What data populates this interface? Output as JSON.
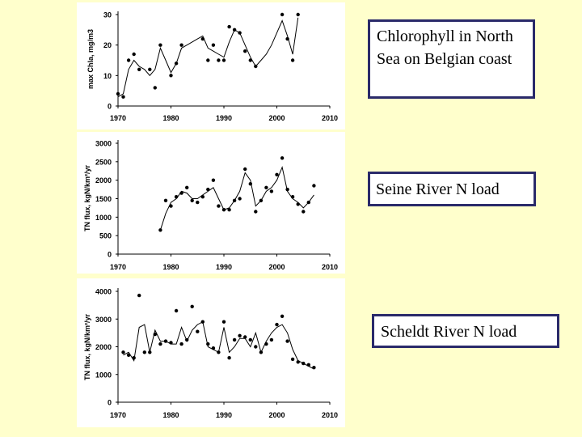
{
  "labels": {
    "chlorophyll": "Chlorophyll in North Sea on Belgian coast",
    "seine": "Seine River N load",
    "scheldt": "Scheldt River N load"
  },
  "chart_data": [
    {
      "type": "scatter",
      "title": "",
      "ylabel": "max Chla, mg/m3",
      "xlim": [
        1970,
        2010
      ],
      "ylim": [
        0,
        30
      ],
      "xticks": [
        "1970",
        "1980",
        "1990",
        "2000",
        "2010"
      ],
      "yticks": [
        "0",
        "10",
        "20",
        "30"
      ],
      "series": [
        {
          "x": [
            1970,
            1971,
            1972,
            1973,
            1974,
            1975,
            1976,
            1977,
            1978,
            1979,
            1980,
            1981,
            1982,
            1983,
            1984,
            1985,
            1986,
            1987,
            1988,
            1989,
            1990,
            1991,
            1992,
            1993,
            1994,
            1995,
            1996,
            1997,
            1998,
            1999,
            2000,
            2001,
            2002,
            2003,
            2004,
            2005,
            2006,
            2007
          ],
          "y": [
            4,
            3,
            15,
            17,
            12,
            null,
            12,
            6,
            20,
            null,
            10,
            14,
            20,
            null,
            null,
            null,
            22,
            15,
            20,
            15,
            15,
            26,
            25,
            24,
            18,
            15,
            13,
            null,
            null,
            null,
            null,
            30,
            22,
            15,
            30,
            null,
            null,
            null
          ]
        }
      ],
      "line": {
        "x": [
          1970,
          1971,
          1972,
          1973,
          1974,
          1975,
          1976,
          1977,
          1978,
          1979,
          1980,
          1981,
          1982,
          1983,
          1984,
          1985,
          1986,
          1987,
          1988,
          1989,
          1990,
          1991,
          1992,
          1993,
          1994,
          1995,
          1996,
          1997,
          1998,
          1999,
          2000,
          2001,
          2002,
          2003,
          2004
        ],
        "y": [
          3,
          4,
          12,
          15,
          13,
          12,
          10,
          12,
          19,
          15,
          11,
          14,
          19,
          20,
          21,
          22,
          23,
          19,
          18,
          17,
          16,
          21,
          25,
          24,
          20,
          16,
          13,
          15,
          17,
          20,
          24,
          28,
          23,
          17,
          29
        ]
      }
    },
    {
      "type": "scatter",
      "title": "",
      "ylabel": "TN flux, kgN/km²/yr",
      "xlim": [
        1970,
        2010
      ],
      "ylim": [
        0,
        3000
      ],
      "xticks": [
        "1970",
        "1980",
        "1990",
        "2000",
        "2010"
      ],
      "yticks": [
        "0",
        "500",
        "1000",
        "1500",
        "2000",
        "2500",
        "3000"
      ],
      "series": [
        {
          "x": [
            1978,
            1979,
            1980,
            1981,
            1982,
            1983,
            1984,
            1985,
            1986,
            1987,
            1988,
            1989,
            1990,
            1991,
            1992,
            1993,
            1994,
            1995,
            1996,
            1997,
            1998,
            1999,
            2000,
            2001,
            2002,
            2003,
            2004,
            2005,
            2006,
            2007,
            2008
          ],
          "y": [
            650,
            1450,
            1300,
            1550,
            1650,
            1800,
            1450,
            1400,
            1550,
            1750,
            2000,
            1300,
            1200,
            1200,
            1450,
            1500,
            2300,
            1900,
            1150,
            1450,
            1800,
            1700,
            2150,
            2600,
            1750,
            1550,
            1350,
            1150,
            1400,
            1850,
            null
          ]
        }
      ],
      "line": {
        "x": [
          1978,
          1979,
          1980,
          1981,
          1982,
          1983,
          1984,
          1985,
          1986,
          1987,
          1988,
          1989,
          1990,
          1991,
          1992,
          1993,
          1994,
          1995,
          1996,
          1997,
          1998,
          1999,
          2000,
          2001,
          2002,
          2003,
          2004,
          2005,
          2006,
          2007
        ],
        "y": [
          650,
          1100,
          1400,
          1500,
          1700,
          1650,
          1500,
          1500,
          1600,
          1700,
          1800,
          1500,
          1200,
          1250,
          1450,
          1700,
          2200,
          2000,
          1300,
          1450,
          1700,
          1800,
          2000,
          2350,
          1700,
          1500,
          1400,
          1250,
          1400,
          1600
        ]
      }
    },
    {
      "type": "scatter",
      "title": "",
      "ylabel": "TN flux, kgN/km²/yr",
      "xlim": [
        1970,
        2010
      ],
      "ylim": [
        0,
        4000
      ],
      "xticks": [
        "1970",
        "1980",
        "1990",
        "2000",
        "2010"
      ],
      "yticks": [
        "0",
        "1000",
        "2000",
        "3000",
        "4000"
      ],
      "series": [
        {
          "x": [
            1971,
            1972,
            1973,
            1974,
            1975,
            1976,
            1977,
            1978,
            1979,
            1980,
            1981,
            1982,
            1983,
            1984,
            1985,
            1986,
            1987,
            1988,
            1989,
            1990,
            1991,
            1992,
            1993,
            1994,
            1995,
            1996,
            1997,
            1998,
            1999,
            2000,
            2001,
            2002,
            2003,
            2004,
            2005,
            2006,
            2007
          ],
          "y": [
            1800,
            1700,
            1600,
            3850,
            1800,
            1800,
            2450,
            2100,
            2200,
            2150,
            3300,
            2100,
            2250,
            3450,
            2550,
            2900,
            2100,
            1950,
            1800,
            2900,
            1600,
            2250,
            2400,
            2350,
            2250,
            2000,
            1800,
            2100,
            2250,
            2800,
            3100,
            2200,
            1550,
            1450,
            1400,
            1350,
            1250
          ]
        }
      ],
      "line": {
        "x": [
          1971,
          1972,
          1973,
          1974,
          1975,
          1976,
          1977,
          1978,
          1979,
          1980,
          1981,
          1982,
          1983,
          1984,
          1985,
          1986,
          1987,
          1988,
          1989,
          1990,
          1991,
          1992,
          1993,
          1994,
          1995,
          1996,
          1997,
          1998,
          1999,
          2000,
          2001,
          2002,
          2003,
          2004,
          2005,
          2006,
          2007
        ],
        "y": [
          1700,
          1800,
          1500,
          2700,
          2800,
          1800,
          2600,
          2200,
          2200,
          2100,
          2100,
          2700,
          2200,
          2600,
          2800,
          2900,
          2000,
          1900,
          1800,
          2700,
          1800,
          2000,
          2300,
          2300,
          2000,
          2500,
          1800,
          2200,
          2500,
          2700,
          2800,
          2500,
          1900,
          1500,
          1400,
          1300,
          1200
        ]
      }
    }
  ]
}
